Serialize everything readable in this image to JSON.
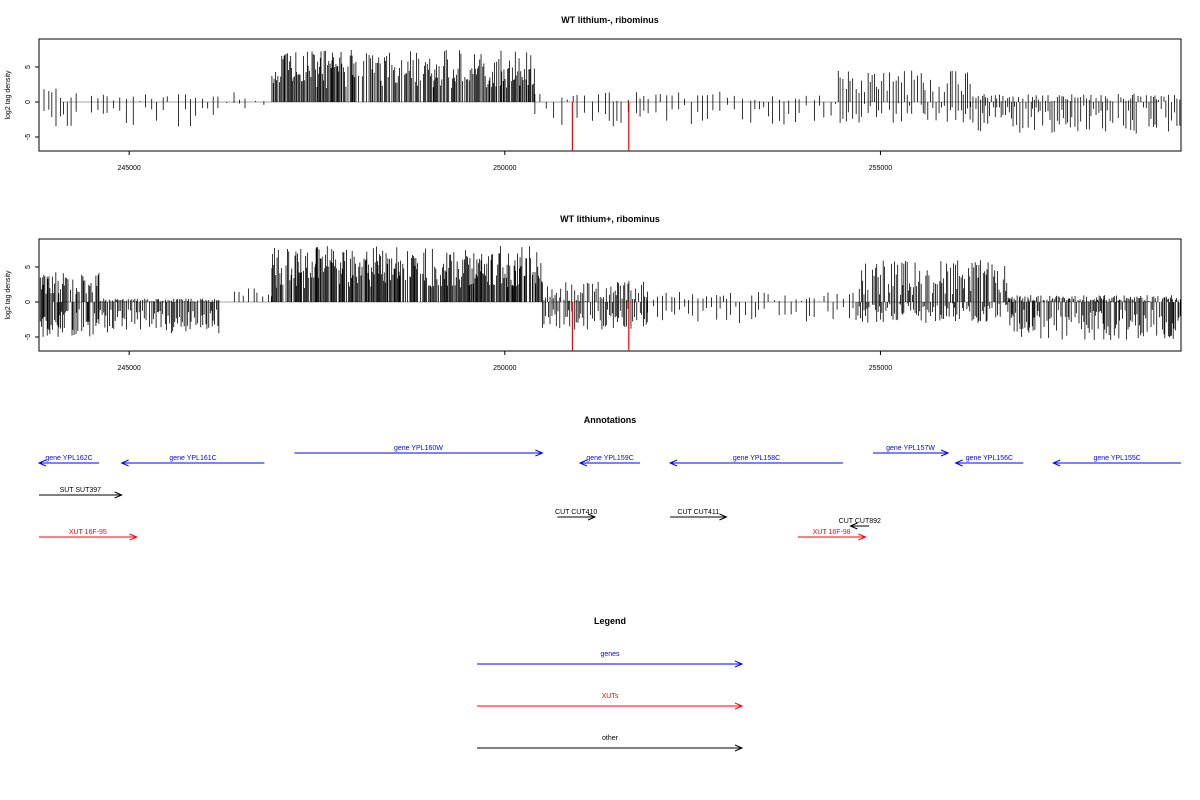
{
  "panels": [
    {
      "id": "top",
      "title": "WT lithium-, ribominus",
      "ylabel": "log2 tag density",
      "ylim": [
        -7,
        9
      ],
      "yticks": [
        -5,
        0,
        5
      ],
      "xlim": [
        243800,
        259000
      ],
      "xticks": [
        245000,
        250000,
        255000
      ],
      "bar_color": "#000000",
      "highlight_color": "#ff0000",
      "segments": [
        {
          "x0": 243800,
          "x1": 244300,
          "step": 60,
          "pos": [
            0,
            2
          ],
          "neg": [
            1,
            3.5
          ]
        },
        {
          "x0": 244500,
          "x1": 246200,
          "step": 70,
          "pos": [
            0,
            1.2
          ],
          "neg": [
            0.5,
            3.5
          ]
        },
        {
          "x0": 246300,
          "x1": 246800,
          "step": 120,
          "pos": [
            0,
            1.5
          ],
          "neg": [
            0,
            1.5
          ]
        },
        {
          "x0": 246900,
          "x1": 250400,
          "step": 15,
          "pos": [
            2,
            7.5
          ],
          "neg": [
            0,
            0
          ]
        },
        {
          "x0": 250400,
          "x1": 254400,
          "step": 80,
          "pos": [
            0,
            1.5
          ],
          "neg": [
            0.3,
            3.5
          ]
        },
        {
          "x0": 254400,
          "x1": 256200,
          "step": 35,
          "pos": [
            1,
            4.5
          ],
          "neg": [
            0,
            3
          ]
        },
        {
          "x0": 256200,
          "x1": 259000,
          "step": 30,
          "pos": [
            0,
            1.2
          ],
          "neg": [
            0.5,
            4.5
          ]
        }
      ],
      "highlights": [
        {
          "x": 250900,
          "y": -6.9
        },
        {
          "x": 251650,
          "y": -6.9
        }
      ]
    },
    {
      "id": "bottom",
      "title": "WT lithium+, ribominus",
      "ylabel": "log2 tag density",
      "ylim": [
        -7,
        9
      ],
      "yticks": [
        -5,
        0,
        5
      ],
      "xlim": [
        243800,
        259000
      ],
      "xticks": [
        245000,
        250000,
        255000
      ],
      "bar_color": "#000000",
      "highlight_color": "#ff0000",
      "segments": [
        {
          "x0": 243800,
          "x1": 244600,
          "step": 14,
          "pos": [
            1,
            4.5
          ],
          "neg": [
            1,
            5
          ]
        },
        {
          "x0": 244600,
          "x1": 246200,
          "step": 18,
          "pos": [
            0,
            0.5
          ],
          "neg": [
            1,
            4.5
          ]
        },
        {
          "x0": 246400,
          "x1": 246900,
          "step": 60,
          "pos": [
            0,
            2.5
          ],
          "neg": [
            0,
            0
          ]
        },
        {
          "x0": 246900,
          "x1": 250500,
          "step": 12,
          "pos": [
            2,
            8
          ],
          "neg": [
            0,
            0
          ]
        },
        {
          "x0": 250500,
          "x1": 251900,
          "step": 20,
          "pos": [
            0,
            3
          ],
          "neg": [
            1,
            4
          ]
        },
        {
          "x0": 251900,
          "x1": 254700,
          "step": 60,
          "pos": [
            0,
            1.5
          ],
          "neg": [
            0.5,
            3
          ]
        },
        {
          "x0": 254700,
          "x1": 256700,
          "step": 18,
          "pos": [
            1,
            6
          ],
          "neg": [
            0,
            3
          ]
        },
        {
          "x0": 256700,
          "x1": 259000,
          "step": 16,
          "pos": [
            0,
            1
          ],
          "neg": [
            1,
            5.5
          ]
        }
      ],
      "highlights": [
        {
          "x": 250900,
          "y": -6.9
        },
        {
          "x": 251650,
          "y": -6.9
        }
      ]
    }
  ],
  "annotations": {
    "title": "Annotations",
    "xlim": [
      243800,
      259000
    ],
    "rows": 6,
    "features": [
      {
        "label": "gene YPL162C",
        "type": "gene",
        "start": 243800,
        "end": 244600,
        "strand": "-",
        "row": 1
      },
      {
        "label": "gene YPL161C",
        "type": "gene",
        "start": 244900,
        "end": 246800,
        "strand": "-",
        "row": 1
      },
      {
        "label": "gene YPL160W",
        "type": "gene",
        "start": 247200,
        "end": 250500,
        "strand": "+",
        "row": 0
      },
      {
        "label": "gene YPL159C",
        "type": "gene",
        "start": 251000,
        "end": 251800,
        "strand": "-",
        "row": 1
      },
      {
        "label": "gene YPL158C",
        "type": "gene",
        "start": 252200,
        "end": 254500,
        "strand": "-",
        "row": 1
      },
      {
        "label": "gene YPL157W",
        "type": "gene",
        "start": 254900,
        "end": 255900,
        "strand": "+",
        "row": 0
      },
      {
        "label": "gene YPL156C",
        "type": "gene",
        "start": 256000,
        "end": 256900,
        "strand": "-",
        "row": 1
      },
      {
        "label": "gene YPL155C",
        "type": "gene",
        "start": 257300,
        "end": 259000,
        "strand": "-",
        "row": 1
      },
      {
        "label": "SUT SUT397",
        "type": "other",
        "start": 243800,
        "end": 244900,
        "strand": "+",
        "row": 2
      },
      {
        "label": "CUT CUT410",
        "type": "other",
        "start": 250700,
        "end": 251200,
        "strand": "+",
        "row": 3
      },
      {
        "label": "CUT CUT411",
        "type": "other",
        "start": 252200,
        "end": 252950,
        "strand": "+",
        "row": 3
      },
      {
        "label": "CUT CUT892",
        "type": "other",
        "start": 254600,
        "end": 254850,
        "strand": "-",
        "row": 4
      },
      {
        "label": "XUT 16F-95",
        "type": "XUT",
        "start": 243800,
        "end": 245100,
        "strand": "+",
        "row": 5
      },
      {
        "label": "XUT 16F-98",
        "type": "XUT",
        "start": 253900,
        "end": 254800,
        "strand": "+",
        "row": 5
      }
    ]
  },
  "legend": {
    "title": "Legend",
    "items": [
      {
        "label": "genes",
        "color": "#0000ff"
      },
      {
        "label": "XUTs",
        "color": "#ff0000"
      },
      {
        "label": "other",
        "color": "#000000"
      }
    ]
  },
  "colors": {
    "gene": "#0000ff",
    "XUT": "#ff0000",
    "other": "#000000"
  }
}
